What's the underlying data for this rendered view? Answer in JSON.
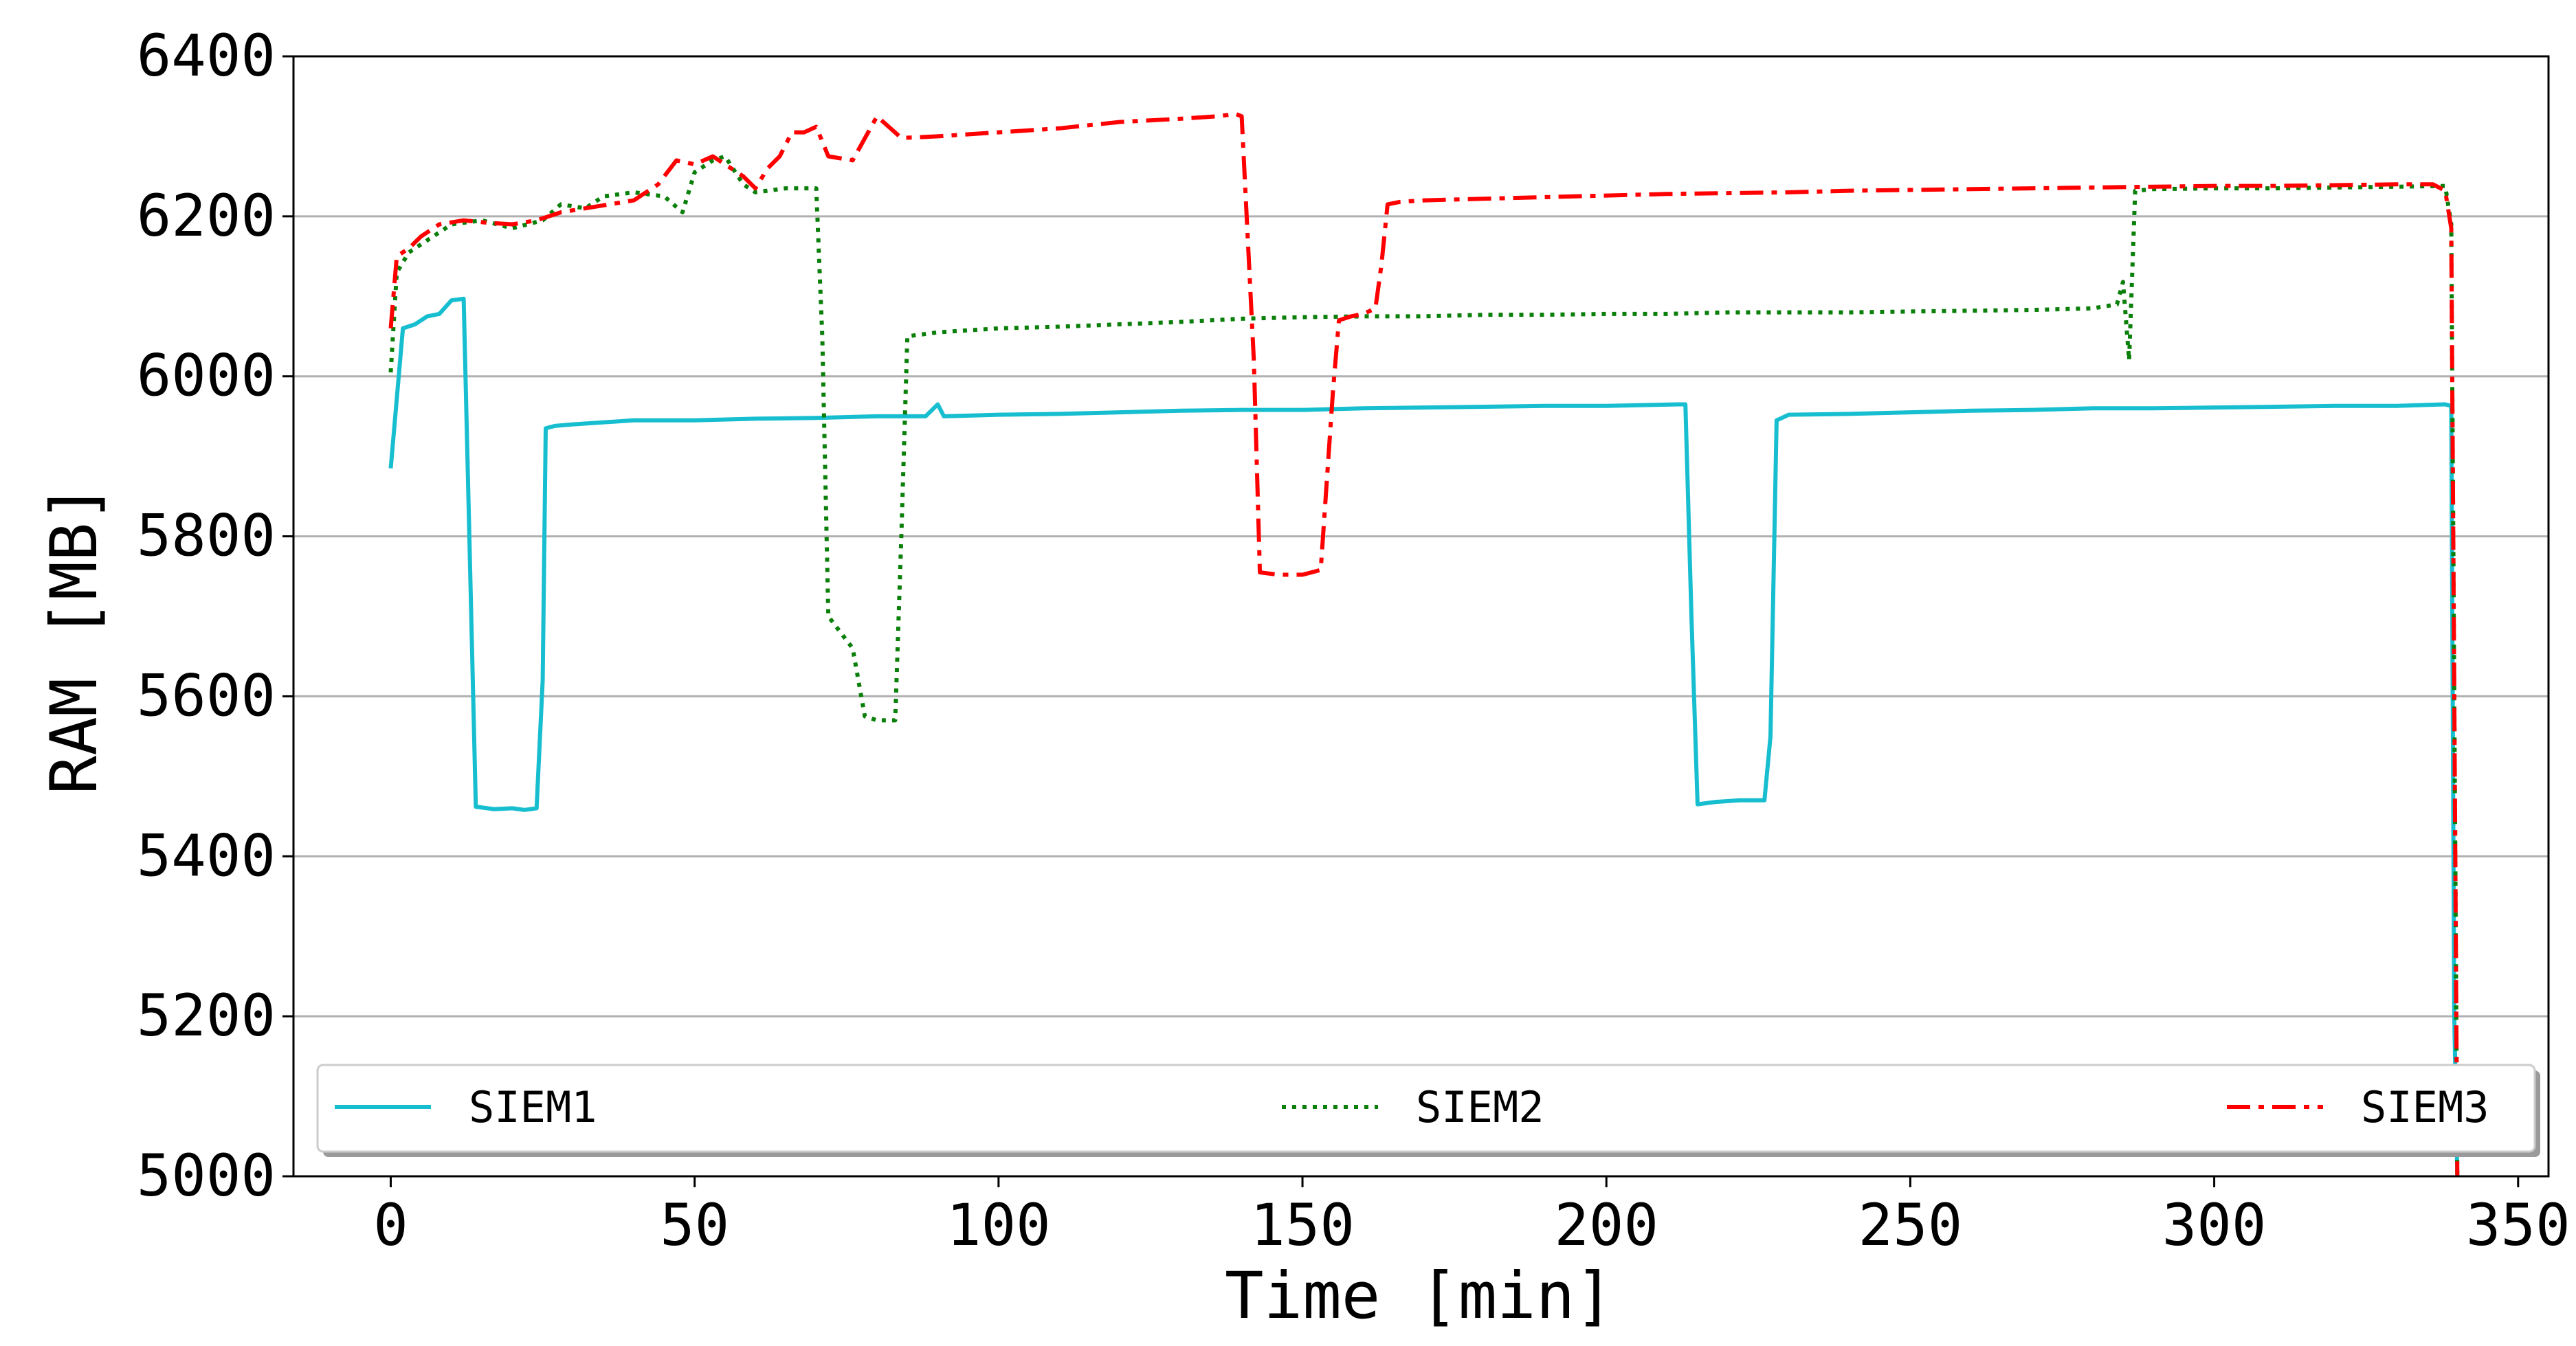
{
  "chart_data": {
    "type": "line",
    "title": "",
    "xlabel": "Time [min]",
    "ylabel": "RAM [MB]",
    "xlim": [
      -16,
      355
    ],
    "ylim": [
      5000,
      6400
    ],
    "xticks": [
      0,
      50,
      100,
      150,
      200,
      250,
      300,
      350
    ],
    "yticks": [
      5000,
      5200,
      5400,
      5600,
      5800,
      6000,
      6200,
      6400
    ],
    "grid": "horizontal",
    "legend_position": "bottom",
    "series": [
      {
        "name": "SIEM1",
        "color": "#17becf",
        "style": "solid",
        "points": [
          [
            0,
            5885
          ],
          [
            2,
            6060
          ],
          [
            4,
            6065
          ],
          [
            6,
            6075
          ],
          [
            8,
            6078
          ],
          [
            10,
            6095
          ],
          [
            12,
            6097
          ],
          [
            14,
            5462
          ],
          [
            17,
            5459
          ],
          [
            20,
            5460
          ],
          [
            22,
            5458
          ],
          [
            24,
            5460
          ],
          [
            25,
            5620
          ],
          [
            25.5,
            5935
          ],
          [
            27,
            5938
          ],
          [
            30,
            5940
          ],
          [
            40,
            5945
          ],
          [
            50,
            5945
          ],
          [
            60,
            5947
          ],
          [
            70,
            5948
          ],
          [
            80,
            5950
          ],
          [
            88,
            5950
          ],
          [
            90,
            5965
          ],
          [
            91,
            5950
          ],
          [
            100,
            5952
          ],
          [
            110,
            5953
          ],
          [
            120,
            5955
          ],
          [
            130,
            5957
          ],
          [
            140,
            5958
          ],
          [
            150,
            5958
          ],
          [
            160,
            5960
          ],
          [
            170,
            5961
          ],
          [
            180,
            5962
          ],
          [
            190,
            5963
          ],
          [
            200,
            5963
          ],
          [
            212,
            5965
          ],
          [
            213,
            5965
          ],
          [
            214,
            5700
          ],
          [
            215,
            5465
          ],
          [
            218,
            5468
          ],
          [
            222,
            5470
          ],
          [
            226,
            5470
          ],
          [
            227,
            5550
          ],
          [
            228,
            5945
          ],
          [
            230,
            5952
          ],
          [
            240,
            5953
          ],
          [
            250,
            5955
          ],
          [
            260,
            5957
          ],
          [
            270,
            5958
          ],
          [
            280,
            5960
          ],
          [
            290,
            5960
          ],
          [
            300,
            5961
          ],
          [
            310,
            5962
          ],
          [
            320,
            5963
          ],
          [
            330,
            5963
          ],
          [
            338,
            5965
          ],
          [
            339,
            5963
          ],
          [
            339.5,
            5200
          ],
          [
            340,
            5000
          ]
        ]
      },
      {
        "name": "SIEM2",
        "color": "#0a7f0a",
        "style": "dotted",
        "points": [
          [
            0,
            6005
          ],
          [
            1,
            6130
          ],
          [
            3,
            6155
          ],
          [
            6,
            6170
          ],
          [
            10,
            6190
          ],
          [
            15,
            6195
          ],
          [
            20,
            6185
          ],
          [
            25,
            6195
          ],
          [
            28,
            6215
          ],
          [
            32,
            6210
          ],
          [
            35,
            6225
          ],
          [
            40,
            6230
          ],
          [
            45,
            6225
          ],
          [
            48,
            6205
          ],
          [
            50,
            6255
          ],
          [
            53,
            6270
          ],
          [
            55,
            6275
          ],
          [
            58,
            6240
          ],
          [
            60,
            6230
          ],
          [
            65,
            6235
          ],
          [
            70,
            6235
          ],
          [
            71,
            6050
          ],
          [
            72,
            5700
          ],
          [
            74,
            5680
          ],
          [
            76,
            5660
          ],
          [
            78,
            5575
          ],
          [
            80,
            5570
          ],
          [
            83,
            5570
          ],
          [
            84,
            5800
          ],
          [
            85,
            6050
          ],
          [
            90,
            6055
          ],
          [
            100,
            6060
          ],
          [
            110,
            6062
          ],
          [
            120,
            6065
          ],
          [
            130,
            6068
          ],
          [
            140,
            6072
          ],
          [
            150,
            6074
          ],
          [
            160,
            6075
          ],
          [
            170,
            6075
          ],
          [
            180,
            6077
          ],
          [
            190,
            6077
          ],
          [
            200,
            6078
          ],
          [
            210,
            6078
          ],
          [
            220,
            6080
          ],
          [
            230,
            6080
          ],
          [
            240,
            6080
          ],
          [
            250,
            6081
          ],
          [
            260,
            6082
          ],
          [
            270,
            6083
          ],
          [
            280,
            6085
          ],
          [
            284,
            6090
          ],
          [
            285,
            6118
          ],
          [
            286,
            6020
          ],
          [
            287,
            6232
          ],
          [
            290,
            6234
          ],
          [
            300,
            6235
          ],
          [
            310,
            6235
          ],
          [
            320,
            6236
          ],
          [
            330,
            6237
          ],
          [
            338,
            6238
          ],
          [
            339,
            6190
          ],
          [
            339.5,
            5600
          ],
          [
            340,
            5000
          ]
        ]
      },
      {
        "name": "SIEM3",
        "color": "#ff0000",
        "style": "dashdot",
        "points": [
          [
            0,
            6060
          ],
          [
            1,
            6150
          ],
          [
            3,
            6160
          ],
          [
            5,
            6175
          ],
          [
            8,
            6190
          ],
          [
            12,
            6195
          ],
          [
            16,
            6192
          ],
          [
            20,
            6190
          ],
          [
            24,
            6195
          ],
          [
            28,
            6205
          ],
          [
            32,
            6210
          ],
          [
            36,
            6215
          ],
          [
            40,
            6220
          ],
          [
            44,
            6240
          ],
          [
            47,
            6270
          ],
          [
            50,
            6265
          ],
          [
            53,
            6275
          ],
          [
            56,
            6260
          ],
          [
            58,
            6250
          ],
          [
            60,
            6235
          ],
          [
            62,
            6260
          ],
          [
            64,
            6275
          ],
          [
            66,
            6305
          ],
          [
            68,
            6305
          ],
          [
            70,
            6312
          ],
          [
            72,
            6275
          ],
          [
            76,
            6270
          ],
          [
            80,
            6325
          ],
          [
            84,
            6298
          ],
          [
            90,
            6300
          ],
          [
            100,
            6305
          ],
          [
            110,
            6310
          ],
          [
            120,
            6318
          ],
          [
            130,
            6322
          ],
          [
            136,
            6325
          ],
          [
            139,
            6328
          ],
          [
            140,
            6325
          ],
          [
            142,
            6020
          ],
          [
            143,
            5755
          ],
          [
            146,
            5752
          ],
          [
            150,
            5752
          ],
          [
            153,
            5758
          ],
          [
            155,
            5980
          ],
          [
            156,
            6070
          ],
          [
            158,
            6075
          ],
          [
            160,
            6078
          ],
          [
            162,
            6085
          ],
          [
            163,
            6140
          ],
          [
            164,
            6215
          ],
          [
            166,
            6218
          ],
          [
            170,
            6220
          ],
          [
            180,
            6222
          ],
          [
            190,
            6224
          ],
          [
            200,
            6226
          ],
          [
            210,
            6228
          ],
          [
            220,
            6229
          ],
          [
            230,
            6230
          ],
          [
            240,
            6232
          ],
          [
            250,
            6233
          ],
          [
            260,
            6234
          ],
          [
            270,
            6235
          ],
          [
            280,
            6236
          ],
          [
            290,
            6237
          ],
          [
            300,
            6238
          ],
          [
            310,
            6238
          ],
          [
            320,
            6239
          ],
          [
            330,
            6240
          ],
          [
            336,
            6240
          ],
          [
            338,
            6232
          ],
          [
            339,
            6185
          ],
          [
            339.5,
            5600
          ],
          [
            340,
            5000
          ]
        ]
      }
    ]
  }
}
